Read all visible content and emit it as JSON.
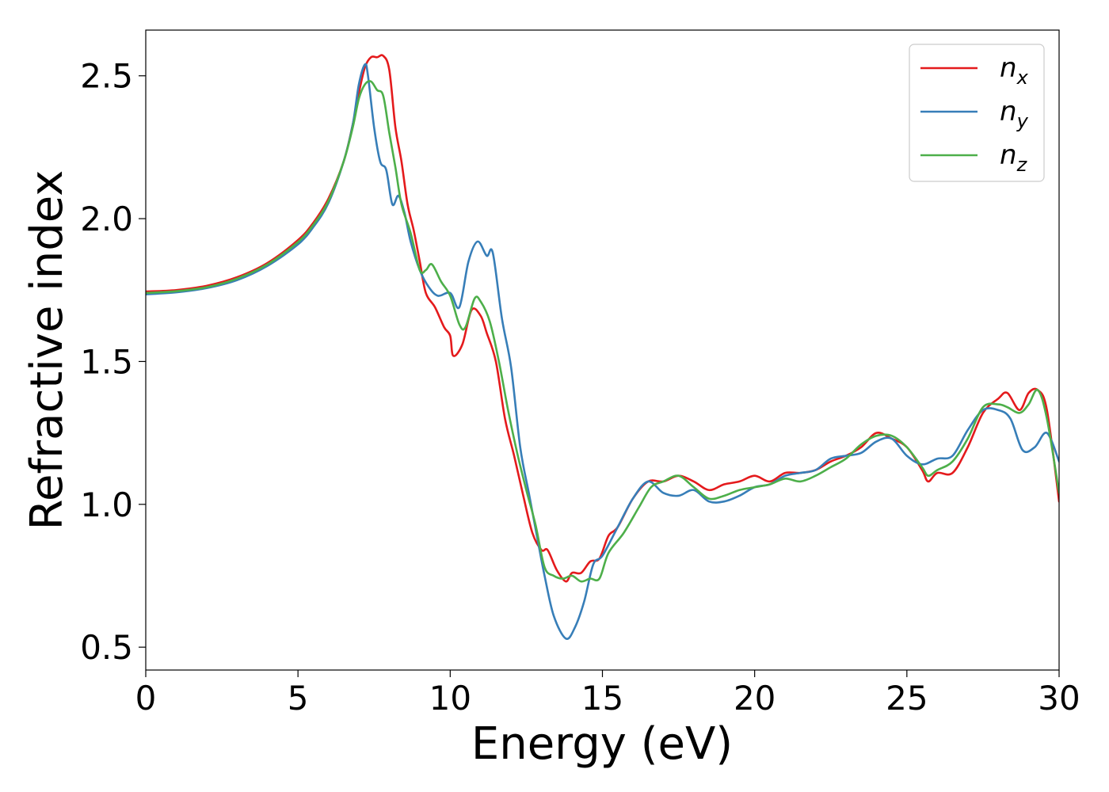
{
  "chart_data": {
    "type": "line",
    "title": "",
    "xlabel": "Energy (eV)",
    "ylabel": "Refractive index",
    "xlim": [
      0,
      30
    ],
    "ylim": [
      0.42,
      2.66
    ],
    "xticks": [
      0,
      5,
      10,
      15,
      20,
      25,
      30
    ],
    "xtick_labels": [
      "0",
      "5",
      "10",
      "15",
      "20",
      "25",
      "30"
    ],
    "yticks": [
      0.5,
      1.0,
      1.5,
      2.0,
      2.5
    ],
    "ytick_labels": [
      "0.5",
      "1.0",
      "1.5",
      "2.0",
      "2.5"
    ],
    "grid": false,
    "legend_position": "top-right",
    "series": [
      {
        "name": "n",
        "subscript": "x",
        "color": "#e41a1c",
        "points": [
          [
            0,
            1.745
          ],
          [
            1,
            1.75
          ],
          [
            2,
            1.765
          ],
          [
            3,
            1.795
          ],
          [
            4,
            1.845
          ],
          [
            5,
            1.925
          ],
          [
            5.5,
            1.985
          ],
          [
            6,
            2.07
          ],
          [
            6.5,
            2.2
          ],
          [
            6.8,
            2.33
          ],
          [
            7.0,
            2.44
          ],
          [
            7.2,
            2.53
          ],
          [
            7.4,
            2.565
          ],
          [
            7.6,
            2.565
          ],
          [
            7.8,
            2.57
          ],
          [
            8.0,
            2.52
          ],
          [
            8.2,
            2.32
          ],
          [
            8.4,
            2.2
          ],
          [
            8.6,
            2.05
          ],
          [
            8.8,
            1.96
          ],
          [
            9.0,
            1.85
          ],
          [
            9.2,
            1.74
          ],
          [
            9.5,
            1.69
          ],
          [
            9.8,
            1.62
          ],
          [
            10.0,
            1.59
          ],
          [
            10.1,
            1.52
          ],
          [
            10.4,
            1.56
          ],
          [
            10.7,
            1.68
          ],
          [
            11.0,
            1.66
          ],
          [
            11.2,
            1.6
          ],
          [
            11.5,
            1.5
          ],
          [
            11.8,
            1.3
          ],
          [
            12.1,
            1.17
          ],
          [
            12.4,
            1.03
          ],
          [
            12.7,
            0.9
          ],
          [
            13.0,
            0.84
          ],
          [
            13.2,
            0.84
          ],
          [
            13.5,
            0.77
          ],
          [
            13.8,
            0.73
          ],
          [
            14.0,
            0.76
          ],
          [
            14.3,
            0.76
          ],
          [
            14.6,
            0.8
          ],
          [
            14.9,
            0.81
          ],
          [
            15.2,
            0.89
          ],
          [
            15.5,
            0.92
          ],
          [
            16.0,
            1.02
          ],
          [
            16.5,
            1.08
          ],
          [
            17.0,
            1.08
          ],
          [
            17.5,
            1.1
          ],
          [
            18.0,
            1.08
          ],
          [
            18.5,
            1.05
          ],
          [
            19.0,
            1.07
          ],
          [
            19.5,
            1.08
          ],
          [
            20.0,
            1.1
          ],
          [
            20.5,
            1.08
          ],
          [
            21.0,
            1.11
          ],
          [
            21.5,
            1.11
          ],
          [
            22.0,
            1.12
          ],
          [
            22.5,
            1.15
          ],
          [
            23.0,
            1.17
          ],
          [
            23.5,
            1.2
          ],
          [
            24.0,
            1.25
          ],
          [
            24.5,
            1.23
          ],
          [
            25.0,
            1.2
          ],
          [
            25.5,
            1.12
          ],
          [
            25.7,
            1.08
          ],
          [
            26.0,
            1.11
          ],
          [
            26.5,
            1.11
          ],
          [
            27.0,
            1.2
          ],
          [
            27.5,
            1.32
          ],
          [
            28.0,
            1.37
          ],
          [
            28.3,
            1.39
          ],
          [
            28.7,
            1.33
          ],
          [
            29.0,
            1.39
          ],
          [
            29.3,
            1.4
          ],
          [
            29.6,
            1.33
          ],
          [
            30.0,
            1.01
          ]
        ]
      },
      {
        "name": "n",
        "subscript": "y",
        "color": "#377eb8",
        "points": [
          [
            0,
            1.735
          ],
          [
            1,
            1.742
          ],
          [
            2,
            1.757
          ],
          [
            3,
            1.785
          ],
          [
            4,
            1.835
          ],
          [
            5,
            1.91
          ],
          [
            5.5,
            1.97
          ],
          [
            6,
            2.055
          ],
          [
            6.5,
            2.2
          ],
          [
            6.8,
            2.33
          ],
          [
            7.0,
            2.47
          ],
          [
            7.2,
            2.54
          ],
          [
            7.3,
            2.5
          ],
          [
            7.5,
            2.32
          ],
          [
            7.7,
            2.2
          ],
          [
            7.9,
            2.17
          ],
          [
            8.1,
            2.05
          ],
          [
            8.3,
            2.08
          ],
          [
            8.5,
            2.02
          ],
          [
            8.7,
            1.92
          ],
          [
            9.0,
            1.82
          ],
          [
            9.3,
            1.76
          ],
          [
            9.6,
            1.73
          ],
          [
            10.0,
            1.74
          ],
          [
            10.3,
            1.69
          ],
          [
            10.6,
            1.85
          ],
          [
            10.9,
            1.92
          ],
          [
            11.2,
            1.87
          ],
          [
            11.4,
            1.88
          ],
          [
            11.7,
            1.65
          ],
          [
            12.0,
            1.48
          ],
          [
            12.3,
            1.2
          ],
          [
            12.6,
            1.03
          ],
          [
            12.9,
            0.86
          ],
          [
            13.1,
            0.75
          ],
          [
            13.4,
            0.61
          ],
          [
            13.8,
            0.53
          ],
          [
            14.1,
            0.57
          ],
          [
            14.4,
            0.66
          ],
          [
            14.7,
            0.79
          ],
          [
            15.0,
            0.82
          ],
          [
            15.5,
            0.92
          ],
          [
            16.0,
            1.02
          ],
          [
            16.5,
            1.08
          ],
          [
            17.0,
            1.04
          ],
          [
            17.5,
            1.03
          ],
          [
            18.0,
            1.05
          ],
          [
            18.5,
            1.01
          ],
          [
            19.0,
            1.01
          ],
          [
            19.5,
            1.03
          ],
          [
            20.0,
            1.06
          ],
          [
            20.5,
            1.07
          ],
          [
            21.0,
            1.1
          ],
          [
            21.5,
            1.11
          ],
          [
            22.0,
            1.12
          ],
          [
            22.5,
            1.16
          ],
          [
            23.0,
            1.17
          ],
          [
            23.5,
            1.18
          ],
          [
            24.0,
            1.22
          ],
          [
            24.5,
            1.23
          ],
          [
            25.0,
            1.17
          ],
          [
            25.5,
            1.14
          ],
          [
            26.0,
            1.16
          ],
          [
            26.5,
            1.17
          ],
          [
            27.0,
            1.26
          ],
          [
            27.5,
            1.33
          ],
          [
            28.0,
            1.33
          ],
          [
            28.4,
            1.3
          ],
          [
            28.8,
            1.19
          ],
          [
            29.2,
            1.2
          ],
          [
            29.6,
            1.25
          ],
          [
            30.0,
            1.15
          ]
        ]
      },
      {
        "name": "n",
        "subscript": "z",
        "color": "#4daf4a",
        "points": [
          [
            0,
            1.74
          ],
          [
            1,
            1.746
          ],
          [
            2,
            1.76
          ],
          [
            3,
            1.79
          ],
          [
            4,
            1.84
          ],
          [
            5,
            1.918
          ],
          [
            5.5,
            1.978
          ],
          [
            6,
            2.062
          ],
          [
            6.5,
            2.2
          ],
          [
            6.8,
            2.32
          ],
          [
            7.0,
            2.42
          ],
          [
            7.2,
            2.47
          ],
          [
            7.4,
            2.48
          ],
          [
            7.6,
            2.45
          ],
          [
            7.8,
            2.43
          ],
          [
            8.0,
            2.3
          ],
          [
            8.2,
            2.18
          ],
          [
            8.4,
            2.05
          ],
          [
            8.7,
            1.95
          ],
          [
            9.0,
            1.82
          ],
          [
            9.2,
            1.82
          ],
          [
            9.4,
            1.84
          ],
          [
            9.7,
            1.78
          ],
          [
            10.0,
            1.73
          ],
          [
            10.3,
            1.63
          ],
          [
            10.5,
            1.62
          ],
          [
            10.8,
            1.72
          ],
          [
            11.0,
            1.71
          ],
          [
            11.3,
            1.64
          ],
          [
            11.6,
            1.5
          ],
          [
            11.9,
            1.33
          ],
          [
            12.2,
            1.18
          ],
          [
            12.5,
            1.05
          ],
          [
            12.8,
            0.93
          ],
          [
            13.1,
            0.78
          ],
          [
            13.4,
            0.75
          ],
          [
            13.7,
            0.74
          ],
          [
            14.0,
            0.75
          ],
          [
            14.3,
            0.73
          ],
          [
            14.6,
            0.74
          ],
          [
            14.9,
            0.74
          ],
          [
            15.2,
            0.83
          ],
          [
            15.7,
            0.9
          ],
          [
            16.2,
            0.99
          ],
          [
            16.6,
            1.06
          ],
          [
            17.0,
            1.08
          ],
          [
            17.5,
            1.1
          ],
          [
            18.0,
            1.06
          ],
          [
            18.5,
            1.02
          ],
          [
            19.0,
            1.03
          ],
          [
            19.5,
            1.05
          ],
          [
            20.0,
            1.06
          ],
          [
            20.5,
            1.07
          ],
          [
            21.0,
            1.09
          ],
          [
            21.5,
            1.08
          ],
          [
            22.0,
            1.1
          ],
          [
            22.5,
            1.13
          ],
          [
            23.0,
            1.16
          ],
          [
            23.5,
            1.21
          ],
          [
            24.0,
            1.24
          ],
          [
            24.5,
            1.24
          ],
          [
            25.0,
            1.2
          ],
          [
            25.5,
            1.13
          ],
          [
            25.7,
            1.1
          ],
          [
            26.0,
            1.12
          ],
          [
            26.5,
            1.15
          ],
          [
            27.0,
            1.23
          ],
          [
            27.5,
            1.34
          ],
          [
            28.0,
            1.35
          ],
          [
            28.3,
            1.34
          ],
          [
            28.7,
            1.32
          ],
          [
            29.0,
            1.35
          ],
          [
            29.3,
            1.4
          ],
          [
            29.6,
            1.3
          ],
          [
            30.0,
            1.04
          ]
        ]
      }
    ]
  }
}
